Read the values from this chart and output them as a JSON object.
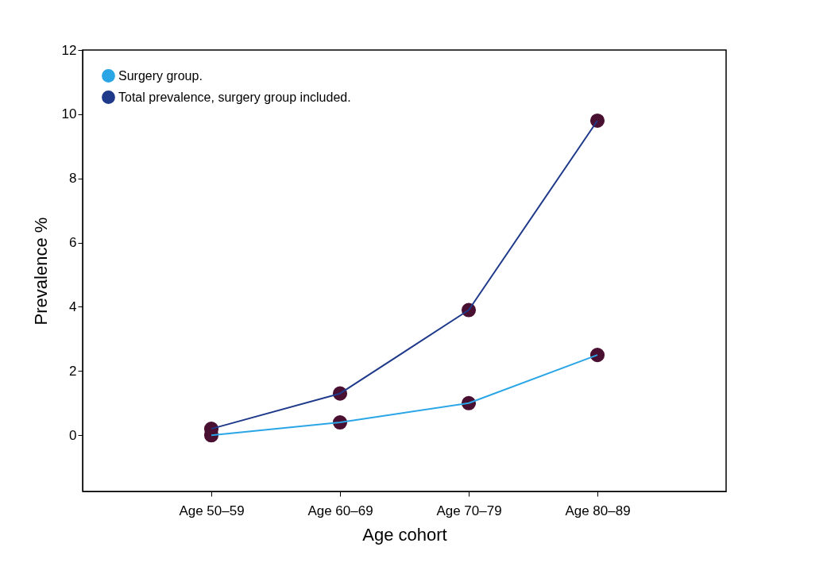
{
  "chart_data": {
    "type": "line",
    "xlabel": "Age cohort",
    "ylabel": "Prevalence %",
    "categories": [
      "Age 50–59",
      "Age 60–69",
      "Age 70–79",
      "Age 80–89"
    ],
    "series": [
      {
        "name": "Surgery group.",
        "color": "#2aa6e6",
        "values": [
          0,
          0.4,
          1.0,
          2.5
        ]
      },
      {
        "name": "Total prevalence, surgery group included.",
        "color": "#1f3a8a",
        "values": [
          0.2,
          1.3,
          3.9,
          9.8
        ]
      }
    ],
    "ylim": [
      -1.75,
      12
    ],
    "yticks": [
      0,
      2,
      4,
      6,
      8,
      10,
      12
    ],
    "grid": false,
    "legend": "top left",
    "marker": "circle",
    "line_style": "solid"
  }
}
